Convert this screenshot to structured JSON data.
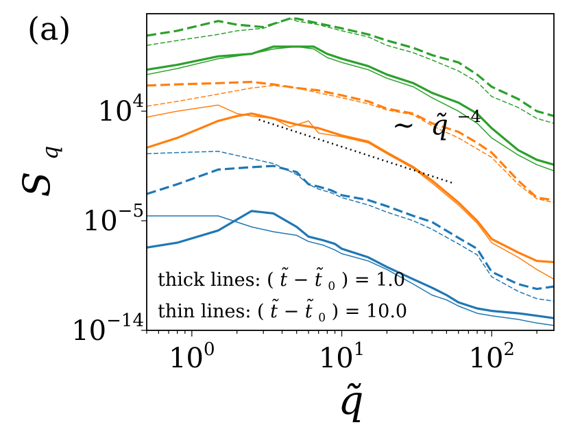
{
  "chart_data": {
    "type": "line",
    "panel_label": "(a)",
    "title": "",
    "xlabel": "q̃",
    "ylabel_main": "S",
    "ylabel_sub": "q",
    "xscale": "log",
    "yscale": "log",
    "xlim": [
      0.5,
      260
    ],
    "ylim_log10": [
      -14,
      12
    ],
    "x_ticks": [
      {
        "value": 1,
        "base": "10",
        "exp": "0"
      },
      {
        "value": 10,
        "base": "10",
        "exp": "1"
      },
      {
        "value": 100,
        "base": "10",
        "exp": "2"
      }
    ],
    "y_ticks": [
      {
        "value_log10": 4,
        "base": "10",
        "exp": "4"
      },
      {
        "value_log10": -5,
        "base": "10",
        "exp": "−5"
      },
      {
        "value_log10": -14,
        "base": "10",
        "exp": "−14"
      }
    ],
    "annotations": {
      "slope_sim": "∼",
      "slope_base": "q̃",
      "slope_exp": "−4",
      "legend_thick_prefix": "thick lines: (",
      "legend_thick_expr": "t̃ − t̃",
      "legend_thick_sub": "0",
      "legend_thick_suffix": ") = 1.0",
      "legend_thin_prefix": "thin lines: (",
      "legend_thin_expr": "t̃ − t̃",
      "legend_thin_sub": "0",
      "legend_thin_suffix": ") = 10.0"
    },
    "reference_line": {
      "x": [
        2.8,
        55
      ],
      "y_log10": [
        3.3,
        -1.9
      ]
    },
    "colors": {
      "blue": "#1f77b4",
      "orange": "#ff7f0e",
      "green": "#2ca02c"
    },
    "series": [
      {
        "name": "green-dashed-thick",
        "color": "green",
        "style": "dashed",
        "width": "thick",
        "x": [
          0.5,
          0.8,
          1.5,
          2.0,
          3.0,
          4.5,
          5.0,
          7.0,
          10,
          15,
          20,
          30,
          40,
          60,
          80,
          100,
          150,
          200,
          260
        ],
        "y_log10": [
          10.2,
          10.6,
          11.4,
          11.1,
          10.9,
          11.6,
          11.6,
          11.2,
          10.8,
          10.3,
          9.8,
          9.2,
          8.6,
          8.0,
          7.0,
          6.0,
          5.0,
          4.0,
          3.6
        ]
      },
      {
        "name": "green-dashed-thin",
        "color": "green",
        "style": "dashed",
        "width": "thin",
        "x": [
          0.5,
          0.8,
          1.5,
          2.0,
          3.0,
          4.5,
          5.0,
          7.0,
          10,
          15,
          20,
          30,
          40,
          60,
          80,
          100,
          150,
          200,
          260
        ],
        "y_log10": [
          9.4,
          9.8,
          10.3,
          10.6,
          10.8,
          11.6,
          11.4,
          11.1,
          10.6,
          10.1,
          9.4,
          8.8,
          8.2,
          7.3,
          6.4,
          5.2,
          4.3,
          3.4,
          3.0
        ]
      },
      {
        "name": "green-solid-thick",
        "color": "green",
        "style": "solid",
        "width": "thick",
        "x": [
          0.5,
          0.8,
          1.5,
          2.5,
          3.5,
          5.0,
          6.5,
          8.0,
          10,
          15,
          20,
          30,
          40,
          60,
          80,
          100,
          150,
          200,
          260
        ],
        "y_log10": [
          7.4,
          7.8,
          8.5,
          8.7,
          9.3,
          9.3,
          9.3,
          8.7,
          8.3,
          7.7,
          7.0,
          6.3,
          5.5,
          4.7,
          3.8,
          2.6,
          0.8,
          0.0,
          -0.4
        ]
      },
      {
        "name": "green-solid-thin",
        "color": "green",
        "style": "solid",
        "width": "thin",
        "x": [
          0.5,
          0.8,
          1.5,
          2.5,
          3.5,
          5.0,
          6.5,
          8.0,
          10,
          15,
          20,
          30,
          40,
          60,
          80,
          100,
          150,
          200,
          260
        ],
        "y_log10": [
          7.0,
          7.5,
          8.3,
          8.7,
          9.1,
          9.3,
          9.1,
          8.4,
          8.0,
          7.4,
          6.7,
          6.0,
          5.1,
          4.0,
          3.0,
          1.8,
          0.4,
          -0.4,
          -0.9
        ]
      },
      {
        "name": "orange-dashed-thick",
        "color": "orange",
        "style": "dashed",
        "width": "thick",
        "x": [
          0.5,
          0.8,
          1.5,
          2.5,
          3.5,
          5.0,
          7.0,
          10,
          15,
          20,
          30,
          40,
          60,
          80,
          100,
          150,
          200,
          260
        ],
        "y_log10": [
          6.1,
          6.2,
          6.3,
          6.4,
          6.2,
          5.9,
          5.7,
          5.3,
          4.8,
          4.2,
          3.8,
          3.0,
          2.3,
          1.4,
          0.6,
          -1.7,
          -3.1,
          -3.3
        ]
      },
      {
        "name": "orange-dashed-thin",
        "color": "orange",
        "style": "dashed",
        "width": "thin",
        "x": [
          0.5,
          0.8,
          1.5,
          2.5,
          3.5,
          5.0,
          7.0,
          10,
          15,
          20,
          30,
          40,
          60,
          80,
          100,
          150,
          200,
          260
        ],
        "y_log10": [
          4.4,
          4.8,
          5.4,
          5.9,
          6.1,
          5.9,
          5.5,
          5.1,
          4.6,
          4.1,
          3.7,
          2.8,
          1.8,
          0.9,
          0.2,
          -2.0,
          -3.2,
          -3.5
        ]
      },
      {
        "name": "orange-solid-thick",
        "color": "orange",
        "style": "solid",
        "width": "thick",
        "x": [
          0.5,
          0.8,
          1.5,
          2.0,
          2.5,
          3.5,
          5.0,
          7.0,
          10,
          15,
          20,
          30,
          40,
          60,
          80,
          100,
          150,
          200,
          260
        ],
        "y_log10": [
          1.0,
          1.8,
          3.2,
          3.6,
          3.8,
          3.4,
          2.9,
          2.6,
          2.0,
          1.5,
          0.6,
          -0.6,
          -1.7,
          -3.5,
          -5.0,
          -6.5,
          -7.6,
          -8.3,
          -8.4
        ]
      },
      {
        "name": "orange-solid-thin",
        "color": "orange",
        "style": "solid",
        "width": "thin",
        "x": [
          0.5,
          0.8,
          1.5,
          2.0,
          2.5,
          3.5,
          4.5,
          6.0,
          7.0,
          10,
          15,
          20,
          30,
          40,
          60,
          80,
          100,
          150,
          200,
          260
        ],
        "y_log10": [
          3.5,
          4.0,
          4.5,
          3.8,
          3.6,
          3.4,
          2.7,
          3.2,
          2.2,
          1.9,
          1.4,
          0.5,
          -0.7,
          -1.9,
          -3.7,
          -5.2,
          -6.8,
          -8.0,
          -9.0,
          -9.8
        ]
      },
      {
        "name": "blue-dashed-thick",
        "color": "blue",
        "style": "dashed",
        "width": "thick",
        "x": [
          0.5,
          0.8,
          1.5,
          2.5,
          3.5,
          5.0,
          6.0,
          7.0,
          8.5,
          10,
          15,
          20,
          30,
          40,
          60,
          80,
          100,
          150,
          200,
          260
        ],
        "y_log10": [
          -2.8,
          -2.0,
          -0.8,
          -0.6,
          -0.5,
          -1.0,
          -2.0,
          -2.2,
          -2.5,
          -2.9,
          -3.3,
          -3.8,
          -4.6,
          -5.1,
          -6.4,
          -7.3,
          -9.2,
          -10.2,
          -10.6,
          -10.4
        ]
      },
      {
        "name": "blue-dashed-thin",
        "color": "blue",
        "style": "dashed",
        "width": "thin",
        "x": [
          0.5,
          0.8,
          1.5,
          2.5,
          3.5,
          5.0,
          6.0,
          7.0,
          8.5,
          10,
          15,
          20,
          30,
          40,
          60,
          80,
          100,
          150,
          200,
          260
        ],
        "y_log10": [
          0.5,
          0.6,
          0.7,
          0.1,
          -0.3,
          -1.2,
          -2.0,
          -2.4,
          -2.7,
          -3.1,
          -3.7,
          -4.3,
          -5.0,
          -5.7,
          -6.9,
          -7.8,
          -9.6,
          -10.8,
          -11.4,
          -11.6
        ]
      },
      {
        "name": "blue-solid-thick",
        "color": "blue",
        "style": "solid",
        "width": "thick",
        "x": [
          0.5,
          0.8,
          1.5,
          2.5,
          3.5,
          5.0,
          6.0,
          7.5,
          9.0,
          10,
          15,
          20,
          30,
          40,
          50,
          60,
          80,
          100,
          150,
          200,
          260
        ],
        "y_log10": [
          -7.2,
          -6.8,
          -5.8,
          -4.2,
          -4.4,
          -5.5,
          -6.3,
          -6.6,
          -6.9,
          -7.3,
          -8.0,
          -8.8,
          -9.8,
          -10.5,
          -11.1,
          -11.7,
          -12.2,
          -12.4,
          -12.6,
          -12.8,
          -13.0
        ]
      },
      {
        "name": "blue-solid-thin",
        "color": "blue",
        "style": "solid",
        "width": "thin",
        "x": [
          0.5,
          0.8,
          1.5,
          2.5,
          3.5,
          5.0,
          6.0,
          7.5,
          9.0,
          10,
          15,
          20,
          30,
          40,
          50,
          60,
          80,
          100,
          150,
          200,
          260
        ],
        "y_log10": [
          -4.6,
          -4.6,
          -4.6,
          -5.5,
          -5.9,
          -6.2,
          -6.7,
          -7.0,
          -7.4,
          -7.7,
          -8.3,
          -9.0,
          -10.2,
          -11.1,
          -11.5,
          -12.0,
          -12.6,
          -12.8,
          -13.1,
          -13.4,
          -13.6
        ]
      }
    ]
  }
}
